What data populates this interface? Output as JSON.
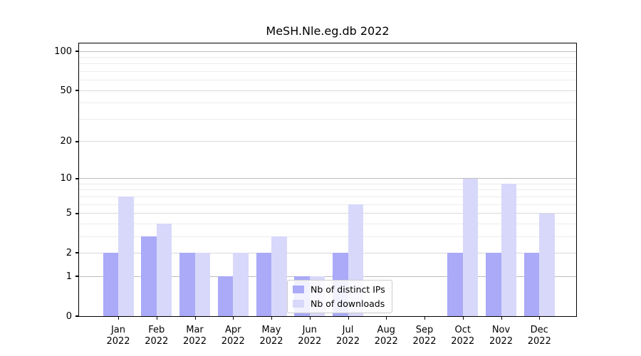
{
  "title": "MeSH.Nle.eg.db 2022",
  "chart_data": {
    "type": "bar",
    "title": "MeSH.Nle.eg.db 2022",
    "y_scale": "log1p",
    "grid": true,
    "categories": [
      "Jan 2022",
      "Feb 2022",
      "Mar 2022",
      "Apr 2022",
      "May 2022",
      "Jun 2022",
      "Jul 2022",
      "Aug 2022",
      "Sep 2022",
      "Oct 2022",
      "Nov 2022",
      "Dec 2022"
    ],
    "series": [
      {
        "name": "Nb of distinct IPs",
        "color": "#aaaaf8",
        "values": [
          2,
          3,
          2,
          1,
          2,
          1,
          2,
          0,
          0,
          2,
          2,
          2
        ]
      },
      {
        "name": "Nb of downloads",
        "color": "#d8d8fa",
        "values": [
          7,
          4,
          2,
          2,
          3,
          1,
          6,
          0,
          0,
          10,
          9,
          5
        ]
      }
    ],
    "y_ticks": [
      0,
      1,
      2,
      5,
      10,
      20,
      50,
      100
    ],
    "major_gridlines": [
      1,
      10,
      100
    ],
    "mid_gridlines": [
      2,
      5,
      20,
      50
    ],
    "minor_gridlines": [
      3,
      4,
      6,
      7,
      8,
      9,
      30,
      40,
      60,
      70,
      80,
      90
    ],
    "ylim": [
      0,
      115
    ],
    "xlabel": "",
    "ylabel": "",
    "legend_position": "lower right inside"
  },
  "colors": {
    "background": "#ffffff",
    "axis": "#000000",
    "grid_major": "#bdbdbd",
    "grid_mid": "#d9d9d9",
    "grid_minor": "#ececec",
    "bar_ips": "#aaaaf8",
    "bar_downloads": "#d8d8fa",
    "legend_border": "#cccccc"
  }
}
